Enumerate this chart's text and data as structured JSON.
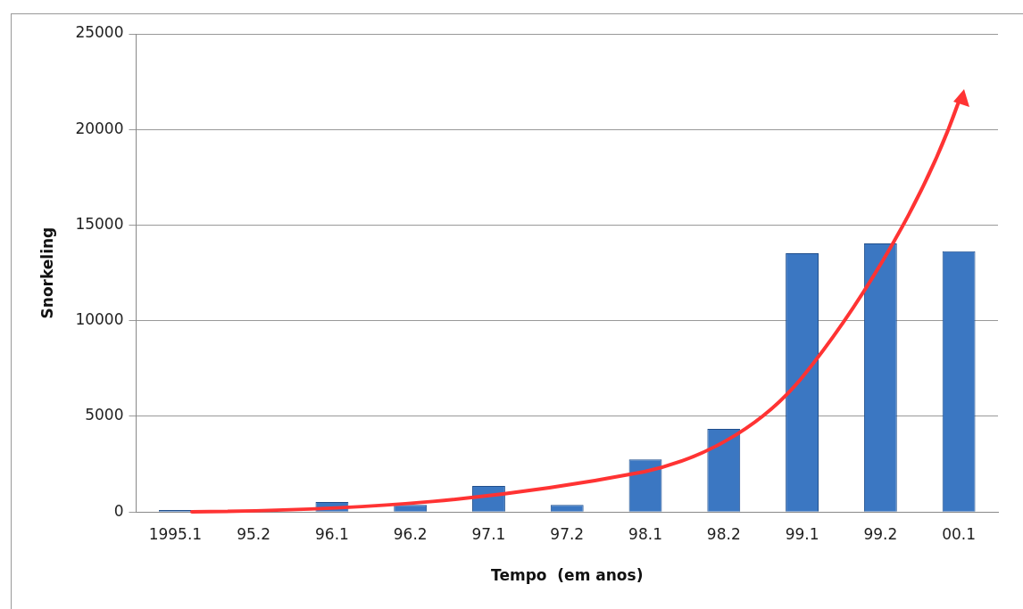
{
  "chart_data": {
    "type": "bar",
    "xlabel": "Tempo  (em anos)",
    "ylabel": "Snorkeling",
    "categories": [
      "1995.1",
      "95.2",
      "96.1",
      "96.2",
      "97.1",
      "97.2",
      "98.1",
      "98.2",
      "99.1",
      "99.2",
      "00.1"
    ],
    "values": [
      100,
      null,
      520,
      370,
      1360,
      370,
      2750,
      4340,
      13530,
      14040,
      13640
    ],
    "color": "#3b77c2",
    "ylim": [
      0,
      25000
    ],
    "yticks": [
      0,
      5000,
      10000,
      15000,
      20000,
      25000
    ],
    "grid": "y",
    "legend": false
  }
}
